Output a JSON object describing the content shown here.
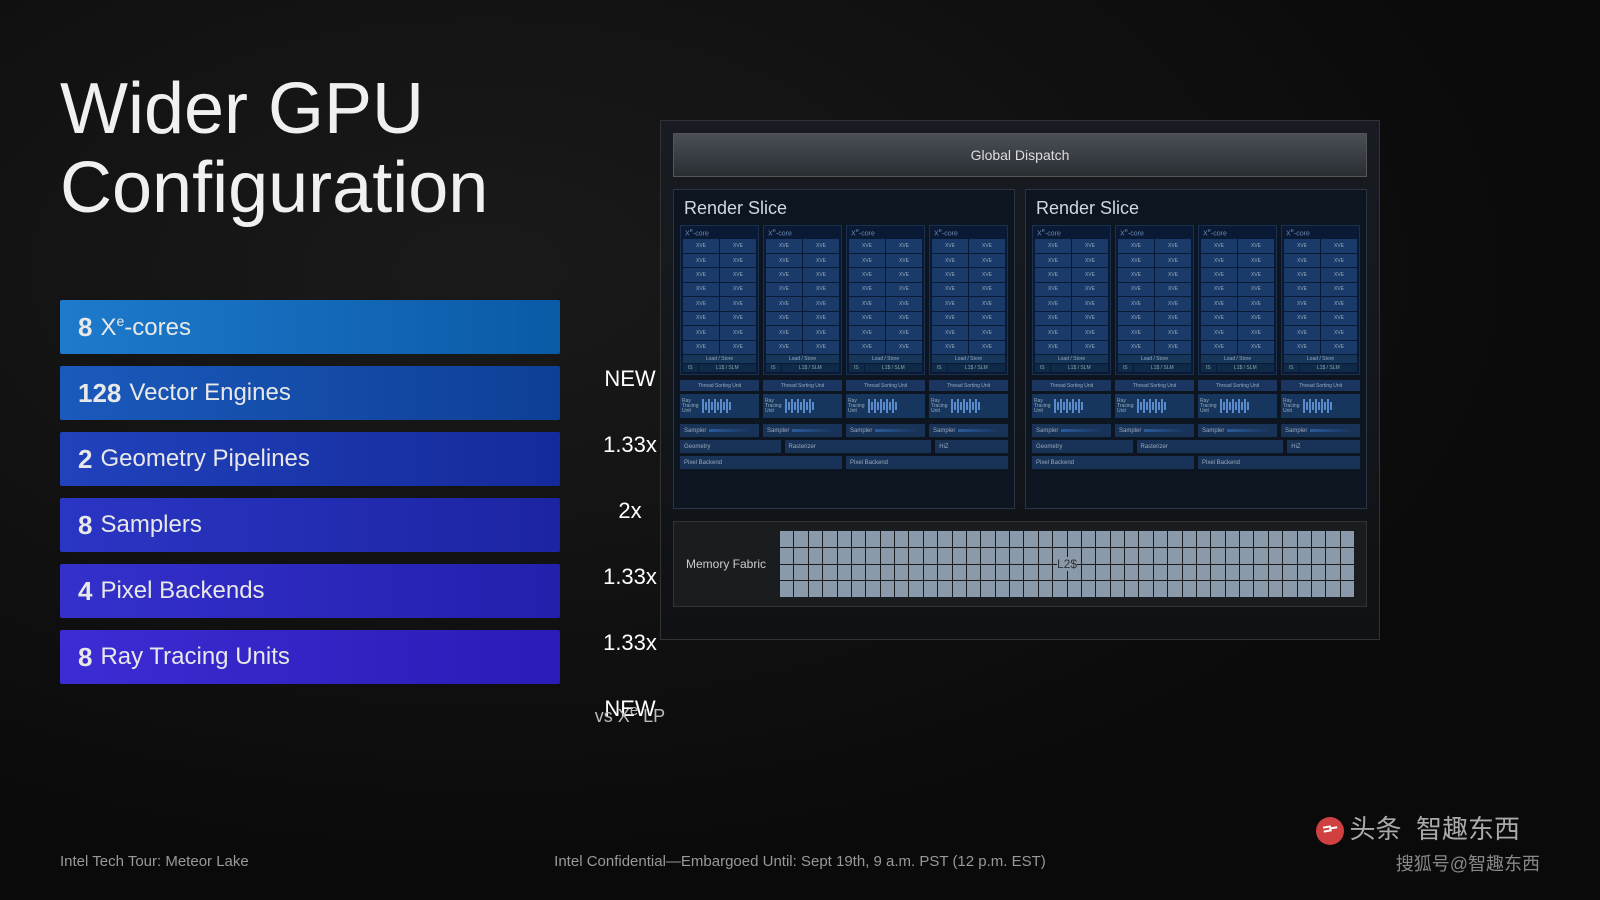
{
  "title_line1": "Wider GPU",
  "title_line2": "Configuration",
  "specs": [
    {
      "num": "8",
      "label": "X<sup>e</sup>-cores",
      "value": "NEW",
      "color1": "#0a5aa6",
      "color2": "#1e7acc"
    },
    {
      "num": "128",
      "label": "Vector Engines",
      "value": "1.33x",
      "color1": "#0e3f96",
      "color2": "#1a5abc"
    },
    {
      "num": "2",
      "label": "Geometry Pipelines",
      "value": "2x",
      "color1": "#152a9a",
      "color2": "#2042bc"
    },
    {
      "num": "8",
      "label": "Samplers",
      "value": "1.33x",
      "color1": "#1c24a2",
      "color2": "#2a36c4"
    },
    {
      "num": "4",
      "label": "Pixel Backends",
      "value": "1.33x",
      "color1": "#2320ac",
      "color2": "#3430cc"
    },
    {
      "num": "8",
      "label": "Ray Tracing Units",
      "value": "NEW",
      "color1": "#2a1cb6",
      "color2": "#3c2cd4"
    }
  ],
  "footnote": "vs X<sup>e</sup> LP",
  "diagram": {
    "global_dispatch": "Global Dispatch",
    "render_slice_title": "Render Slice",
    "xecore_label": "X<sup>e</sup>-core",
    "xve_label": "XVE",
    "loadstore": "Load / Store",
    "is_label": "IS",
    "l1slm": "L1$ / SLM",
    "thread_sorting": "Thread Sorting Unit",
    "ray_tracing": "Ray Tracing Unit",
    "sampler": "Sampler",
    "geometry": "Geometry",
    "rasterizer": "Rasterizer",
    "hiz": "HiZ",
    "pixel_backend": "Pixel Backend",
    "memory_fabric": "Memory Fabric",
    "l2": "L2$",
    "cores_per_slice": 4,
    "xve_per_core": 16,
    "slices": 2,
    "colors": {
      "core_bg": "#0a1a34",
      "xve_bg": "#1a3a6a",
      "block_bg": "#183258",
      "l2_cell": "#8a9aaa"
    }
  },
  "footer": {
    "left": "Intel Tech Tour:  Meteor Lake",
    "center": "Intel Confidential—Embargoed Until: Sept 19th, 9 a.m. PST (12 p.m. EST)"
  },
  "watermark1": "头条",
  "watermark2": "智趣东西",
  "watermark3": "搜狐号@智趣东西"
}
